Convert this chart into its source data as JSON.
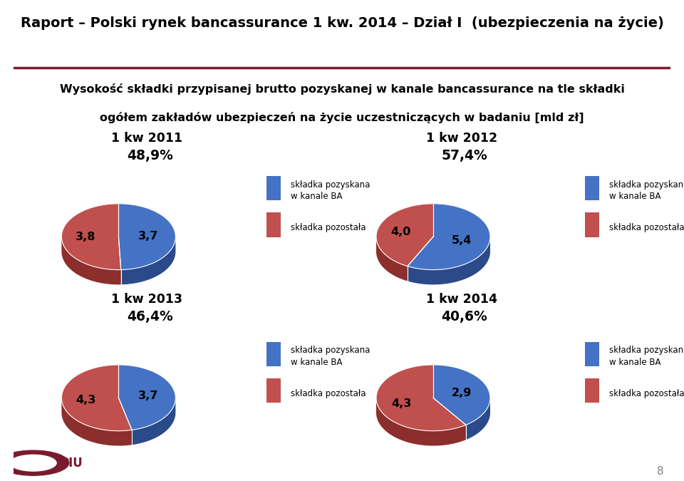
{
  "title_main": "Raport – Polski rynek bancassurance 1 kw. 2014 – Dział I",
  "title_sub": "(ubezpieczenia na życie)",
  "subtitle_line1": "Wysokość składki przypisanej brutto pozyskanej w kanale bancassurance na tle składki",
  "subtitle_line2": "ogółem zakładów ubezpieczeń na życie uczestniczących w badaniu [mld zł]",
  "charts": [
    {
      "title": "1 kw 2011",
      "ba_value": 3.7,
      "other_value": 3.8,
      "pct": "48,9%"
    },
    {
      "title": "1 kw 2012",
      "ba_value": 5.4,
      "other_value": 4.0,
      "pct": "57,4%"
    },
    {
      "title": "1 kw 2013",
      "ba_value": 3.7,
      "other_value": 4.3,
      "pct": "46,4%"
    },
    {
      "title": "1 kw 2014",
      "ba_value": 2.9,
      "other_value": 4.3,
      "pct": "40,6%"
    }
  ],
  "color_ba": "#4472C4",
  "color_other": "#C0504D",
  "color_ba_shadow": "#2A4A8A",
  "color_other_shadow": "#8B2E2C",
  "legend_ba": "składka pozyskana\nw kanale BA",
  "legend_other": "składka pozostała",
  "separator_color": "#7B1A2E",
  "page_number": "8"
}
